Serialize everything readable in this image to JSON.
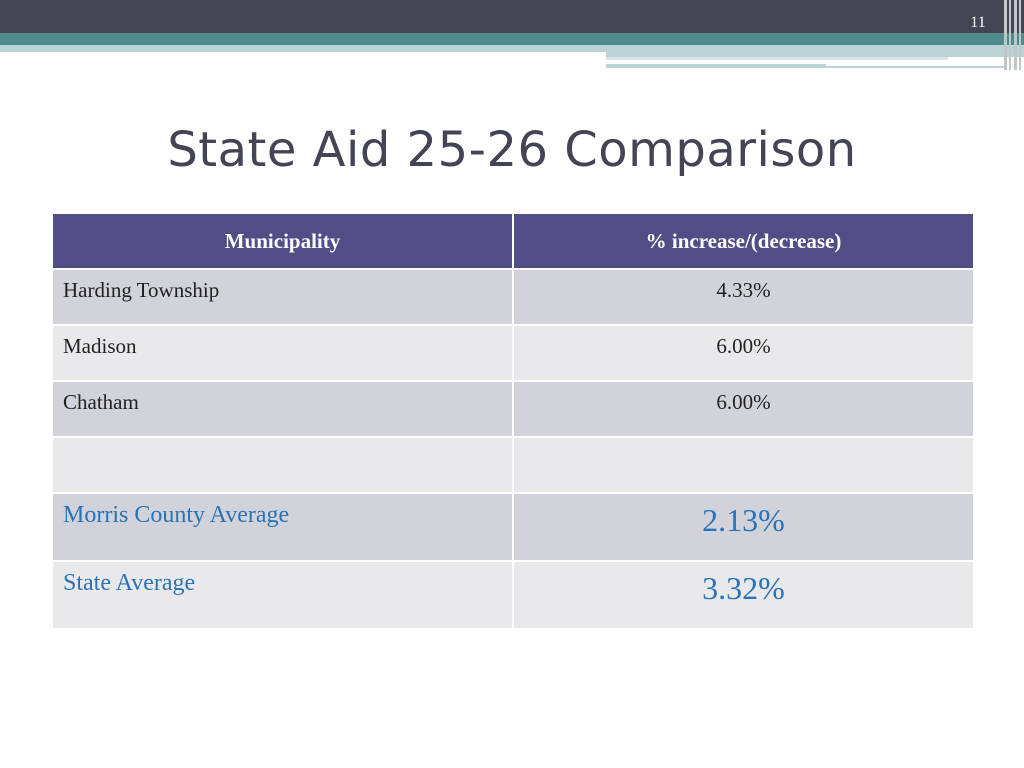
{
  "slide": {
    "number": "11",
    "title": "State Aid 25-26 Comparison"
  },
  "table": {
    "headers": [
      "Municipality",
      "% increase/(decrease)"
    ],
    "rows": [
      {
        "municipality": "Harding Township",
        "value": "4.33%"
      },
      {
        "municipality": "Madison",
        "value": "6.00%"
      },
      {
        "municipality": "Chatham",
        "value": "6.00%"
      },
      {
        "municipality": "",
        "value": ""
      },
      {
        "municipality": "Morris County Average",
        "value": "2.13%"
      },
      {
        "municipality": "State Average",
        "value": "3.32%"
      }
    ]
  },
  "colors": {
    "header_bg": "#514e86",
    "highlight_text": "#2a73b8",
    "title_text": "#434454",
    "top_band": "#434454",
    "teal_band": "#4f8b8b"
  }
}
